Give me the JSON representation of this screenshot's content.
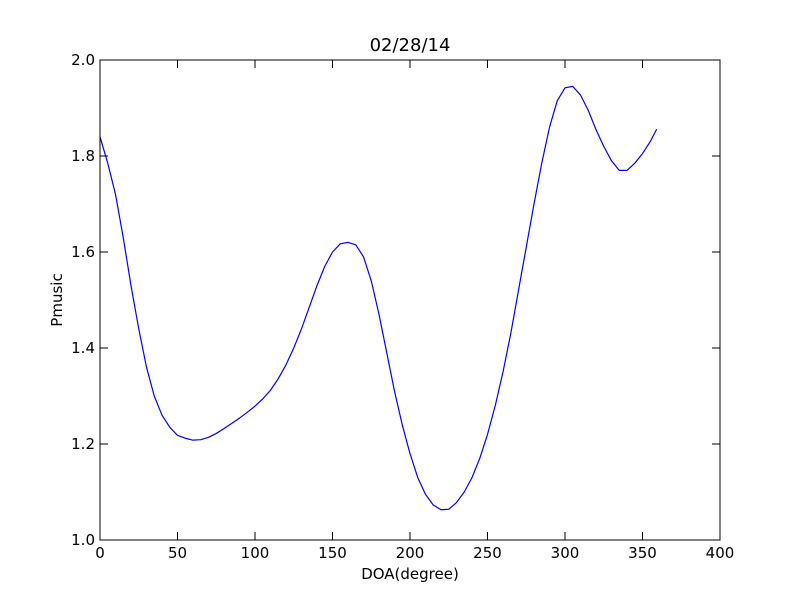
{
  "chart_data": {
    "type": "line",
    "title": "02/28/14",
    "xlabel": "DOA(degree)",
    "ylabel": "Pmusic",
    "xlim": [
      0,
      400
    ],
    "ylim": [
      1.0,
      2.0
    ],
    "xticks": [
      0,
      50,
      100,
      150,
      200,
      250,
      300,
      350,
      400
    ],
    "yticks": [
      1.0,
      1.2,
      1.4,
      1.6,
      1.8,
      2.0
    ],
    "xtick_labels": [
      "0",
      "50",
      "100",
      "150",
      "200",
      "250",
      "300",
      "350",
      "400"
    ],
    "ytick_labels": [
      "1.0",
      "1.2",
      "1.4",
      "1.6",
      "1.8",
      "2.0"
    ],
    "grid": false,
    "series": [
      {
        "name": "Pmusic",
        "color": "#0000ff",
        "x": [
          0,
          5,
          10,
          15,
          20,
          25,
          30,
          35,
          40,
          45,
          50,
          55,
          60,
          65,
          70,
          75,
          80,
          85,
          90,
          95,
          100,
          105,
          110,
          115,
          120,
          125,
          130,
          135,
          140,
          145,
          150,
          155,
          160,
          165,
          170,
          175,
          180,
          185,
          190,
          195,
          200,
          205,
          210,
          215,
          220,
          225,
          230,
          235,
          240,
          245,
          250,
          255,
          260,
          265,
          270,
          275,
          280,
          285,
          290,
          295,
          300,
          305,
          310,
          315,
          320,
          325,
          330,
          335,
          340,
          345,
          350,
          355,
          359
        ],
        "y": [
          1.84,
          1.785,
          1.72,
          1.63,
          1.53,
          1.44,
          1.36,
          1.3,
          1.26,
          1.235,
          1.218,
          1.212,
          1.208,
          1.209,
          1.214,
          1.222,
          1.232,
          1.243,
          1.254,
          1.266,
          1.279,
          1.294,
          1.312,
          1.336,
          1.365,
          1.4,
          1.44,
          1.485,
          1.53,
          1.57,
          1.6,
          1.617,
          1.62,
          1.615,
          1.59,
          1.54,
          1.47,
          1.39,
          1.31,
          1.24,
          1.18,
          1.13,
          1.095,
          1.073,
          1.063,
          1.064,
          1.078,
          1.1,
          1.13,
          1.17,
          1.22,
          1.28,
          1.35,
          1.43,
          1.52,
          1.61,
          1.7,
          1.785,
          1.86,
          1.915,
          1.942,
          1.945,
          1.927,
          1.895,
          1.855,
          1.82,
          1.79,
          1.77,
          1.77,
          1.785,
          1.805,
          1.83,
          1.855
        ]
      }
    ]
  }
}
